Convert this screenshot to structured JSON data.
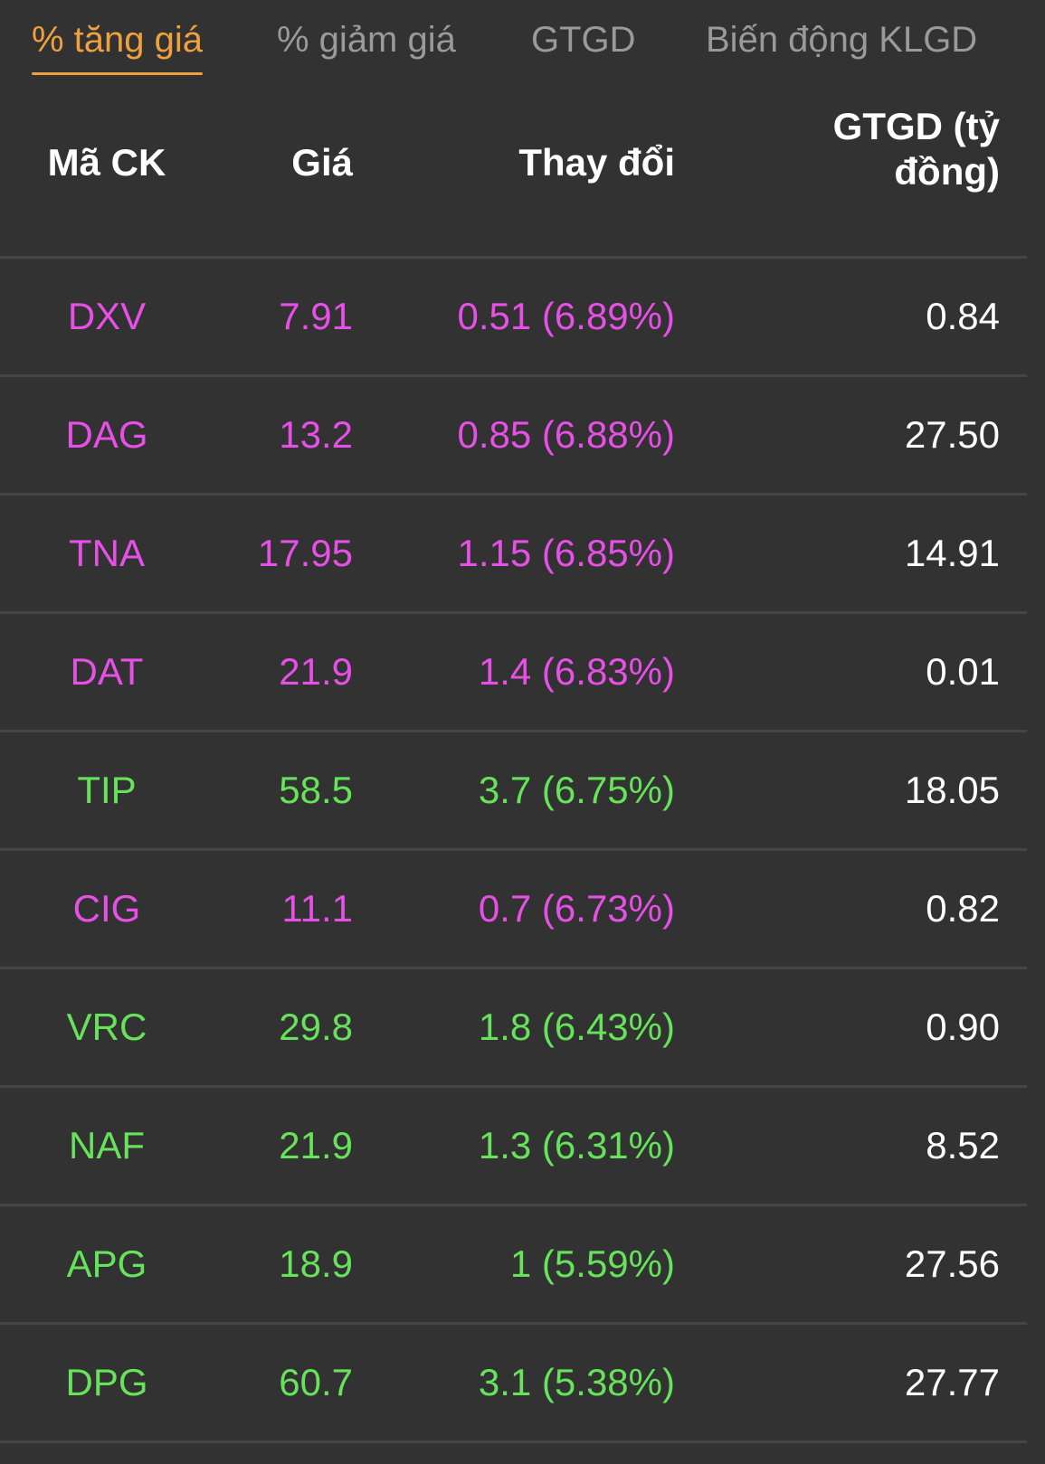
{
  "tabs": [
    {
      "label": "% tăng giá",
      "active": true
    },
    {
      "label": "% giảm giá",
      "active": false
    },
    {
      "label": "GTGD",
      "active": false
    },
    {
      "label": "Biến động KLGD",
      "active": false
    }
  ],
  "table": {
    "headers": {
      "code": "Mã CK",
      "price": "Giá",
      "change": "Thay đổi",
      "value": "GTGD (tỷ đồng)"
    },
    "rows": [
      {
        "code": "DXV",
        "price": "7.91",
        "change": "0.51 (6.89%)",
        "value": "0.84",
        "status": "ceil"
      },
      {
        "code": "DAG",
        "price": "13.2",
        "change": "0.85 (6.88%)",
        "value": "27.50",
        "status": "ceil"
      },
      {
        "code": "TNA",
        "price": "17.95",
        "change": "1.15 (6.85%)",
        "value": "14.91",
        "status": "ceil"
      },
      {
        "code": "DAT",
        "price": "21.9",
        "change": "1.4 (6.83%)",
        "value": "0.01",
        "status": "ceil"
      },
      {
        "code": "TIP",
        "price": "58.5",
        "change": "3.7 (6.75%)",
        "value": "18.05",
        "status": "up"
      },
      {
        "code": "CIG",
        "price": "11.1",
        "change": "0.7 (6.73%)",
        "value": "0.82",
        "status": "ceil"
      },
      {
        "code": "VRC",
        "price": "29.8",
        "change": "1.8 (6.43%)",
        "value": "0.90",
        "status": "up"
      },
      {
        "code": "NAF",
        "price": "21.9",
        "change": "1.3 (6.31%)",
        "value": "8.52",
        "status": "up"
      },
      {
        "code": "APG",
        "price": "18.9",
        "change": "1 (5.59%)",
        "value": "27.56",
        "status": "up"
      },
      {
        "code": "DPG",
        "price": "60.7",
        "change": "3.1 (5.38%)",
        "value": "27.77",
        "status": "up"
      }
    ]
  },
  "colors": {
    "background": "#323232",
    "active_tab": "#f0a03c",
    "inactive_tab": "#9a9a9a",
    "ceiling": "#e650e6",
    "up": "#66e35a",
    "text": "#ffffff",
    "divider": "#454545"
  }
}
